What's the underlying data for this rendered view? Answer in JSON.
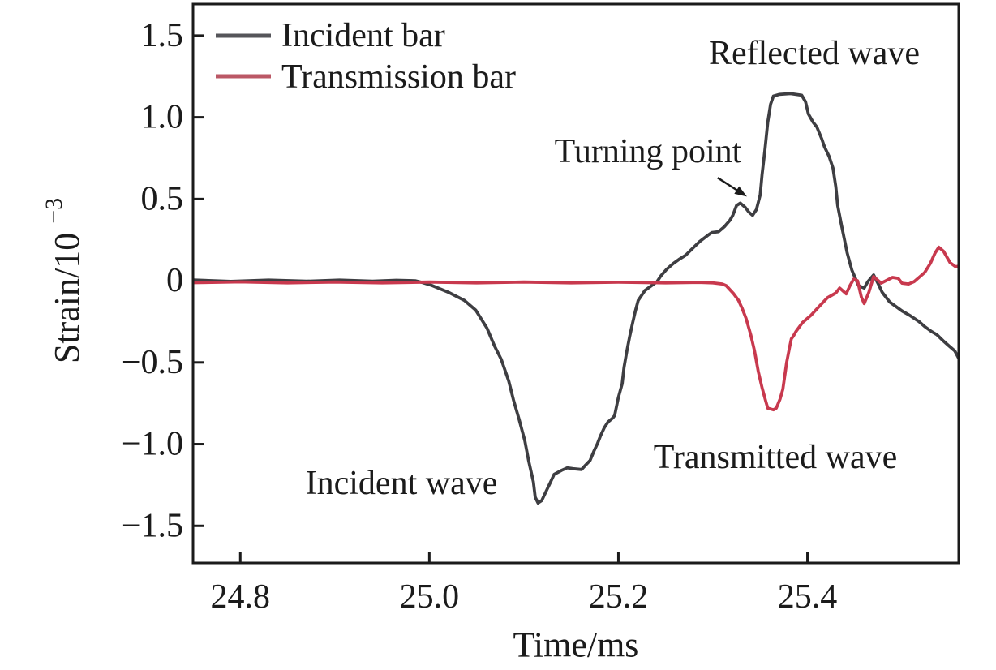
{
  "chart_data": {
    "type": "line",
    "title": "",
    "xlabel": "Time/ms",
    "ylabel": "Strain/10⁻³",
    "ylabel_parts": {
      "base": "Strain/10",
      "exponent": "−3"
    },
    "xlim": [
      24.75,
      25.56
    ],
    "ylim": [
      -1.727,
      1.693
    ],
    "grid": false,
    "legend_position": "top-left",
    "xticks": [
      {
        "value": 24.8,
        "label": "24.8"
      },
      {
        "value": 25.0,
        "label": "25.0"
      },
      {
        "value": 25.2,
        "label": "25.2"
      },
      {
        "value": 25.4,
        "label": "25.4"
      }
    ],
    "yticks": [
      {
        "value": 1.5,
        "label": "1.5"
      },
      {
        "value": 1.0,
        "label": "1.0"
      },
      {
        "value": 0.5,
        "label": "0.5"
      },
      {
        "value": 0,
        "label": "0"
      },
      {
        "value": -0.5,
        "label": "−0.5"
      },
      {
        "value": -1.0,
        "label": "−1.0"
      },
      {
        "value": -1.5,
        "label": "−1.5"
      }
    ],
    "legend": [
      {
        "label": "Incident bar",
        "color": "#55555a"
      },
      {
        "label": "Transmission bar",
        "color": "#bb5866"
      }
    ],
    "annotations": [
      {
        "text": "Reflected wave",
        "x": 25.408,
        "y": 1.39
      },
      {
        "text": "Turning point",
        "x": 25.231,
        "y": 0.79
      },
      {
        "text": "Incident wave",
        "x": 24.971,
        "y": -1.24
      },
      {
        "text": "Transmitted wave",
        "x": 25.365,
        "y": -1.08
      }
    ],
    "arrow": {
      "x1": 25.305,
      "y1": 0.63,
      "x2": 25.336,
      "y2": 0.515
    },
    "series": [
      {
        "name": "Incident bar",
        "color": "#3e3e42",
        "points": [
          [
            24.75,
            0.005
          ],
          [
            24.79,
            -0.004
          ],
          [
            24.83,
            0.004
          ],
          [
            24.87,
            -0.003
          ],
          [
            24.905,
            0.004
          ],
          [
            24.94,
            -0.003
          ],
          [
            24.965,
            0.003
          ],
          [
            24.985,
            0.0
          ],
          [
            24.992,
            -0.01
          ],
          [
            25.003,
            -0.03
          ],
          [
            25.02,
            -0.07
          ],
          [
            25.037,
            -0.12
          ],
          [
            25.049,
            -0.18
          ],
          [
            25.061,
            -0.29
          ],
          [
            25.069,
            -0.4
          ],
          [
            25.076,
            -0.48
          ],
          [
            25.084,
            -0.615
          ],
          [
            25.089,
            -0.73
          ],
          [
            25.095,
            -0.85
          ],
          [
            25.101,
            -0.98
          ],
          [
            25.105,
            -1.1
          ],
          [
            25.11,
            -1.23
          ],
          [
            25.112,
            -1.325
          ],
          [
            25.115,
            -1.36
          ],
          [
            25.119,
            -1.345
          ],
          [
            25.123,
            -1.295
          ],
          [
            25.128,
            -1.235
          ],
          [
            25.132,
            -1.185
          ],
          [
            25.14,
            -1.16
          ],
          [
            25.146,
            -1.145
          ],
          [
            25.152,
            -1.15
          ],
          [
            25.161,
            -1.155
          ],
          [
            25.165,
            -1.13
          ],
          [
            25.17,
            -1.1
          ],
          [
            25.174,
            -1.045
          ],
          [
            25.178,
            -0.995
          ],
          [
            25.181,
            -0.95
          ],
          [
            25.185,
            -0.9
          ],
          [
            25.189,
            -0.865
          ],
          [
            25.194,
            -0.84
          ],
          [
            25.196,
            -0.825
          ],
          [
            25.2,
            -0.715
          ],
          [
            25.204,
            -0.63
          ],
          [
            25.206,
            -0.53
          ],
          [
            25.209,
            -0.43
          ],
          [
            25.212,
            -0.34
          ],
          [
            25.215,
            -0.26
          ],
          [
            25.218,
            -0.185
          ],
          [
            25.221,
            -0.12
          ],
          [
            25.228,
            -0.06
          ],
          [
            25.241,
            -0.005
          ],
          [
            25.245,
            0.03
          ],
          [
            25.251,
            0.07
          ],
          [
            25.258,
            0.105
          ],
          [
            25.264,
            0.13
          ],
          [
            25.271,
            0.155
          ],
          [
            25.278,
            0.195
          ],
          [
            25.286,
            0.24
          ],
          [
            25.295,
            0.28
          ],
          [
            25.299,
            0.295
          ],
          [
            25.306,
            0.3
          ],
          [
            25.312,
            0.33
          ],
          [
            25.318,
            0.37
          ],
          [
            25.321,
            0.4
          ],
          [
            25.325,
            0.46
          ],
          [
            25.329,
            0.475
          ],
          [
            25.334,
            0.45
          ],
          [
            25.338,
            0.42
          ],
          [
            25.342,
            0.4
          ],
          [
            25.346,
            0.435
          ],
          [
            25.35,
            0.525
          ],
          [
            25.352,
            0.65
          ],
          [
            25.355,
            0.8
          ],
          [
            25.358,
            0.97
          ],
          [
            25.361,
            1.08
          ],
          [
            25.364,
            1.13
          ],
          [
            25.37,
            1.14
          ],
          [
            25.382,
            1.145
          ],
          [
            25.394,
            1.135
          ],
          [
            25.398,
            1.095
          ],
          [
            25.401,
            1.02
          ],
          [
            25.406,
            0.97
          ],
          [
            25.41,
            0.94
          ],
          [
            25.415,
            0.87
          ],
          [
            25.418,
            0.82
          ],
          [
            25.423,
            0.76
          ],
          [
            25.427,
            0.69
          ],
          [
            25.43,
            0.575
          ],
          [
            25.432,
            0.46
          ],
          [
            25.436,
            0.34
          ],
          [
            25.442,
            0.17
          ],
          [
            25.447,
            0.065
          ],
          [
            25.454,
            -0.03
          ],
          [
            25.46,
            -0.045
          ],
          [
            25.464,
            -0.005
          ],
          [
            25.47,
            0.035
          ],
          [
            25.475,
            -0.02
          ],
          [
            25.479,
            -0.07
          ],
          [
            25.487,
            -0.13
          ],
          [
            25.5,
            -0.185
          ],
          [
            25.509,
            -0.215
          ],
          [
            25.518,
            -0.25
          ],
          [
            25.524,
            -0.28
          ],
          [
            25.531,
            -0.31
          ],
          [
            25.537,
            -0.33
          ],
          [
            25.544,
            -0.37
          ],
          [
            25.55,
            -0.4
          ],
          [
            25.556,
            -0.43
          ],
          [
            25.56,
            -0.475
          ]
        ]
      },
      {
        "name": "Transmission bar",
        "color": "#c8394e",
        "points": [
          [
            24.75,
            -0.012
          ],
          [
            24.8,
            -0.007
          ],
          [
            24.85,
            -0.013
          ],
          [
            24.9,
            -0.008
          ],
          [
            24.95,
            -0.013
          ],
          [
            25.0,
            -0.008
          ],
          [
            25.05,
            -0.013
          ],
          [
            25.1,
            -0.008
          ],
          [
            25.15,
            -0.013
          ],
          [
            25.2,
            -0.009
          ],
          [
            25.25,
            -0.013
          ],
          [
            25.285,
            -0.01
          ],
          [
            25.3,
            -0.013
          ],
          [
            25.31,
            -0.02
          ],
          [
            25.314,
            -0.03
          ],
          [
            25.318,
            -0.055
          ],
          [
            25.322,
            -0.08
          ],
          [
            25.327,
            -0.12
          ],
          [
            25.331,
            -0.17
          ],
          [
            25.335,
            -0.23
          ],
          [
            25.34,
            -0.33
          ],
          [
            25.344,
            -0.43
          ],
          [
            25.348,
            -0.555
          ],
          [
            25.352,
            -0.655
          ],
          [
            25.356,
            -0.74
          ],
          [
            25.358,
            -0.78
          ],
          [
            25.364,
            -0.79
          ],
          [
            25.367,
            -0.78
          ],
          [
            25.371,
            -0.725
          ],
          [
            25.374,
            -0.665
          ],
          [
            25.378,
            -0.5
          ],
          [
            25.381,
            -0.41
          ],
          [
            25.383,
            -0.355
          ],
          [
            25.385,
            -0.34
          ],
          [
            25.388,
            -0.31
          ],
          [
            25.395,
            -0.255
          ],
          [
            25.404,
            -0.21
          ],
          [
            25.412,
            -0.16
          ],
          [
            25.421,
            -0.105
          ],
          [
            25.43,
            -0.075
          ],
          [
            25.434,
            -0.045
          ],
          [
            25.441,
            -0.08
          ],
          [
            25.445,
            -0.03
          ],
          [
            25.449,
            0.01
          ],
          [
            25.453,
            0
          ],
          [
            25.457,
            -0.1
          ],
          [
            25.46,
            -0.14
          ],
          [
            25.465,
            -0.07
          ],
          [
            25.47,
            0.025
          ],
          [
            25.474,
            0.005
          ],
          [
            25.478,
            -0.015
          ],
          [
            25.483,
            0
          ],
          [
            25.49,
            0.02
          ],
          [
            25.496,
            0.015
          ],
          [
            25.5,
            -0.015
          ],
          [
            25.507,
            -0.02
          ],
          [
            25.513,
            -0.005
          ],
          [
            25.518,
            0.02
          ],
          [
            25.524,
            0.05
          ],
          [
            25.53,
            0.105
          ],
          [
            25.535,
            0.17
          ],
          [
            25.539,
            0.205
          ],
          [
            25.544,
            0.18
          ],
          [
            25.548,
            0.14
          ],
          [
            25.551,
            0.11
          ],
          [
            25.557,
            0.085
          ],
          [
            25.56,
            0.09
          ]
        ]
      }
    ]
  }
}
